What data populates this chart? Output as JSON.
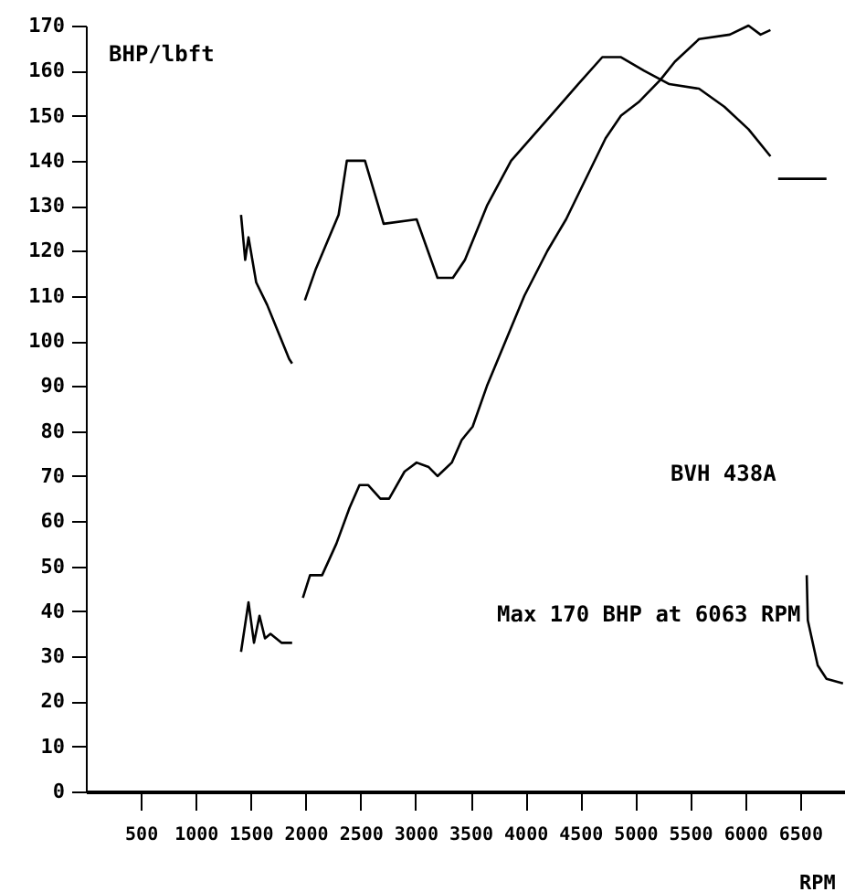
{
  "chart_data": {
    "type": "line",
    "xlabel": "RPM",
    "ylabel": "BHP/lbft",
    "annotations": [
      "BVH 438A",
      "Max 170 BHP at 6063 RPM"
    ],
    "series": [
      {
        "color": "#000000",
        "x": [
          1412,
          1450,
          1480,
          1550,
          1650,
          1750,
          1850,
          1877
        ],
        "values": [
          128,
          118,
          123,
          113,
          108,
          102,
          96,
          95
        ]
      },
      {
        "color": "#000000",
        "x": [
          1993,
          2093,
          2300,
          2375,
          2540,
          2710,
          3010,
          3200,
          3340,
          3450,
          3650,
          3870,
          4230,
          4480,
          4700,
          4870,
          5080,
          5310,
          5580,
          5810,
          6030,
          6230
        ],
        "values": [
          109,
          116,
          128,
          140,
          140,
          126,
          127,
          114,
          114,
          118,
          130,
          140,
          150,
          157,
          163,
          163,
          160,
          157,
          156,
          152,
          147,
          141
        ]
      },
      {
        "color": "#000000",
        "x": [
          6300,
          6740
        ],
        "values": [
          136,
          136
        ]
      },
      {
        "color": "#000000",
        "x": [
          1412,
          1480,
          1530,
          1580,
          1630,
          1680,
          1780,
          1877
        ],
        "values": [
          31,
          42,
          33,
          39,
          34,
          35,
          33,
          33
        ]
      },
      {
        "color": "#000000",
        "x": [
          1975,
          2040,
          2150,
          2280,
          2400,
          2490,
          2570,
          2680,
          2760,
          2900,
          3010,
          3120,
          3200,
          3330,
          3420,
          3520,
          3650,
          3820,
          3990,
          4200,
          4370,
          4530,
          4730,
          4870,
          5030,
          5230,
          5360,
          5580,
          5860,
          6030,
          6140,
          6230
        ],
        "values": [
          43,
          48,
          48,
          55,
          63,
          68,
          68,
          65,
          65,
          71,
          73,
          72,
          70,
          73,
          78,
          81,
          90,
          100,
          110,
          120,
          127,
          135,
          145,
          150,
          153,
          158,
          162,
          167,
          168,
          170,
          168,
          169
        ]
      },
      {
        "color": "#000000",
        "x": [
          6560,
          6570,
          6660,
          6740,
          6890
        ],
        "values": [
          48,
          38,
          28,
          25,
          24
        ]
      }
    ],
    "xlim": [
      0,
      6900
    ],
    "ylim": [
      0,
      170
    ],
    "xticks": [
      500,
      1000,
      1500,
      2000,
      2500,
      3000,
      3500,
      4000,
      4500,
      5000,
      5500,
      6000,
      6500
    ],
    "yticks": [
      0,
      10,
      20,
      30,
      40,
      50,
      60,
      70,
      80,
      90,
      100,
      110,
      120,
      130,
      140,
      150,
      160,
      170
    ],
    "grid": false,
    "marker": "none",
    "line_style": "solid"
  }
}
